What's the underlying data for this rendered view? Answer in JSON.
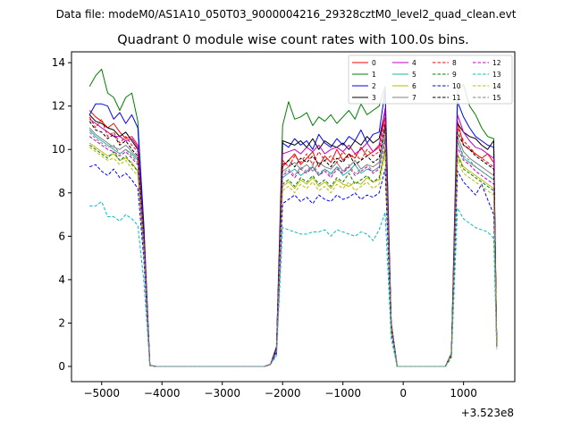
{
  "figure": {
    "suptitle": "Data file: modeM0/AS1A10_050T03_9000004216_29328cztM0_level2_quad_clean.evt"
  },
  "chart_data": {
    "type": "line",
    "title": "Quadrant 0 module wise count rates with 100.0s bins.",
    "xlabel": "",
    "ylabel": "",
    "x_offset_label": "+3.523e8",
    "xlim": [
      -5500,
      1850
    ],
    "ylim": [
      -0.7,
      14.5
    ],
    "xticks": [
      -5000,
      -4000,
      -3000,
      -2000,
      -1000,
      0,
      1000
    ],
    "yticks": [
      0,
      2,
      4,
      6,
      8,
      10,
      12,
      14
    ],
    "grid": false,
    "legend_location": "top-right",
    "x": [
      -5200,
      -5100,
      -5000,
      -4900,
      -4800,
      -4700,
      -4600,
      -4500,
      -4400,
      -4300,
      -4200,
      -4100,
      -4000,
      -3900,
      -3800,
      -3700,
      -3600,
      -3500,
      -3400,
      -3300,
      -3200,
      -3100,
      -3000,
      -2900,
      -2800,
      -2700,
      -2600,
      -2500,
      -2400,
      -2300,
      -2200,
      -2100,
      -2000,
      -1900,
      -1800,
      -1700,
      -1600,
      -1500,
      -1400,
      -1300,
      -1200,
      -1100,
      -1000,
      -900,
      -800,
      -700,
      -600,
      -500,
      -400,
      -300,
      -200,
      -100,
      0,
      100,
      200,
      300,
      400,
      500,
      600,
      700,
      800,
      900,
      1000,
      1100,
      1200,
      1300,
      1400,
      1500,
      1550
    ],
    "series": [
      {
        "name": "0",
        "color": "#ff0000",
        "dash": "solid",
        "values": [
          11.8,
          11.5,
          11.3,
          11.0,
          11.2,
          10.8,
          10.5,
          10.6,
          10.2,
          6.0,
          0.05,
          0,
          0,
          0,
          0,
          0,
          0,
          0,
          0,
          0,
          0,
          0,
          0,
          0,
          0,
          0,
          0,
          0,
          0,
          0,
          0.1,
          0.8,
          9.2,
          9.5,
          9.8,
          9.3,
          9.6,
          9.9,
          9.2,
          9.7,
          9.4,
          10.0,
          9.5,
          9.8,
          9.6,
          10.1,
          9.7,
          9.9,
          10.2,
          11.5,
          2.0,
          0,
          0,
          0,
          0,
          0,
          0,
          0,
          0,
          0,
          0.6,
          11.3,
          10.2,
          10.0,
          9.8,
          9.6,
          9.8,
          9.4,
          1.0
        ]
      },
      {
        "name": "1",
        "color": "#008000",
        "dash": "solid",
        "values": [
          12.9,
          13.4,
          13.7,
          12.6,
          12.4,
          11.8,
          12.4,
          12.6,
          11.3,
          6.5,
          0.05,
          0,
          0,
          0,
          0,
          0,
          0,
          0,
          0,
          0,
          0,
          0,
          0,
          0,
          0,
          0,
          0,
          0,
          0,
          0,
          0.1,
          0.9,
          11.1,
          12.2,
          11.4,
          11.5,
          11.7,
          11.1,
          11.5,
          11.3,
          11.6,
          11.2,
          11.5,
          11.8,
          11.4,
          12.1,
          11.6,
          11.8,
          12.0,
          12.9,
          2.0,
          0,
          0,
          0,
          0,
          0,
          0,
          0,
          0,
          0,
          0.6,
          12.7,
          13.0,
          12.0,
          11.6,
          11.0,
          10.6,
          10.5,
          1.1
        ]
      },
      {
        "name": "2",
        "color": "#0000ff",
        "dash": "solid",
        "values": [
          11.6,
          12.1,
          12.1,
          12.0,
          11.4,
          11.7,
          11.2,
          11.6,
          11.0,
          6.4,
          0.05,
          0,
          0,
          0,
          0,
          0,
          0,
          0,
          0,
          0,
          0,
          0,
          0,
          0,
          0,
          0,
          0,
          0,
          0,
          0,
          0.1,
          0.9,
          10.3,
          10.1,
          10.5,
          10.2,
          10.4,
          10.0,
          10.7,
          10.3,
          10.1,
          10.5,
          10.2,
          10.6,
          10.4,
          10.9,
          10.3,
          10.7,
          10.8,
          12.7,
          2.0,
          0,
          0,
          0,
          0,
          0,
          0,
          0,
          0,
          0,
          0.6,
          12.2,
          11.5,
          11.0,
          10.6,
          10.4,
          10.2,
          10.1,
          1.0
        ]
      },
      {
        "name": "3",
        "color": "#000000",
        "dash": "solid",
        "values": [
          11.6,
          11.3,
          11.2,
          11.0,
          10.9,
          10.6,
          10.8,
          10.4,
          10.0,
          6.0,
          0.05,
          0,
          0,
          0,
          0,
          0,
          0,
          0,
          0,
          0,
          0,
          0,
          0,
          0,
          0,
          0,
          0,
          0,
          0,
          0,
          0.1,
          0.8,
          10.4,
          10.3,
          10.2,
          10.4,
          10.1,
          10.5,
          10.0,
          10.4,
          10.2,
          10.1,
          10.3,
          10.0,
          10.4,
          10.2,
          10.6,
          10.3,
          10.5,
          11.8,
          2.0,
          0,
          0,
          0,
          0,
          0,
          0,
          0,
          0,
          0,
          0.6,
          11.2,
          10.8,
          10.6,
          10.5,
          10.2,
          10.0,
          10.4,
          1.0
        ]
      },
      {
        "name": "4",
        "color": "#c000c0",
        "dash": "solid",
        "values": [
          11.4,
          11.2,
          11.0,
          10.8,
          10.6,
          10.6,
          10.4,
          10.5,
          10.1,
          5.9,
          0.05,
          0,
          0,
          0,
          0,
          0,
          0,
          0,
          0,
          0,
          0,
          0,
          0,
          0,
          0,
          0,
          0,
          0,
          0,
          0,
          0.1,
          0.8,
          9.8,
          9.9,
          10.0,
          9.8,
          10.1,
          9.9,
          10.2,
          9.8,
          10.0,
          10.1,
          9.9,
          10.2,
          9.8,
          10.0,
          10.3,
          9.9,
          10.1,
          11.9,
          2.0,
          0,
          0,
          0,
          0,
          0,
          0,
          0,
          0,
          0,
          0.6,
          11.6,
          10.8,
          10.4,
          10.1,
          10.0,
          9.8,
          9.6,
          1.0
        ]
      },
      {
        "name": "5",
        "color": "#20b2aa",
        "dash": "solid",
        "values": [
          10.9,
          10.6,
          10.4,
          10.2,
          10.0,
          9.8,
          10.0,
          9.8,
          9.5,
          5.6,
          0.05,
          0,
          0,
          0,
          0,
          0,
          0,
          0,
          0,
          0,
          0,
          0,
          0,
          0,
          0,
          0,
          0,
          0,
          0,
          0,
          0.1,
          0.7,
          8.7,
          8.9,
          9.1,
          8.8,
          9.0,
          9.2,
          8.8,
          9.1,
          8.9,
          9.2,
          8.8,
          9.0,
          9.3,
          8.9,
          9.1,
          9.0,
          9.2,
          10.6,
          1.8,
          0,
          0,
          0,
          0,
          0,
          0,
          0,
          0,
          0,
          0.5,
          10.4,
          9.6,
          9.4,
          9.2,
          9.0,
          8.8,
          8.6,
          0.9
        ]
      },
      {
        "name": "6",
        "color": "#bbbb00",
        "dash": "solid",
        "values": [
          10.3,
          10.1,
          9.9,
          9.7,
          9.8,
          9.5,
          9.6,
          9.4,
          9.0,
          5.4,
          0.05,
          0,
          0,
          0,
          0,
          0,
          0,
          0,
          0,
          0,
          0,
          0,
          0,
          0,
          0,
          0,
          0,
          0,
          0,
          0,
          0.1,
          0.7,
          8.3,
          8.5,
          8.2,
          8.6,
          8.4,
          8.7,
          8.3,
          8.5,
          8.2,
          8.6,
          8.4,
          8.3,
          8.5,
          8.4,
          8.7,
          8.5,
          8.6,
          10.1,
          1.8,
          0,
          0,
          0,
          0,
          0,
          0,
          0,
          0,
          0,
          0.5,
          9.8,
          9.2,
          9.0,
          8.8,
          8.6,
          8.4,
          8.2,
          0.9
        ]
      },
      {
        "name": "7",
        "color": "#808080",
        "dash": "solid",
        "values": [
          11.0,
          10.7,
          10.5,
          10.3,
          10.1,
          10.0,
          10.2,
          9.9,
          9.6,
          5.7,
          0.05,
          0,
          0,
          0,
          0,
          0,
          0,
          0,
          0,
          0,
          0,
          0,
          0,
          0,
          0,
          0,
          0,
          0,
          0,
          0,
          0.1,
          0.7,
          9.0,
          9.2,
          9.4,
          9.1,
          9.3,
          9.0,
          9.4,
          9.2,
          9.1,
          9.4,
          9.0,
          9.2,
          9.5,
          9.1,
          9.3,
          9.2,
          9.4,
          11.0,
          1.9,
          0,
          0,
          0,
          0,
          0,
          0,
          0,
          0,
          0,
          0.6,
          10.6,
          9.9,
          9.6,
          9.4,
          9.2,
          9.0,
          8.8,
          0.9
        ]
      },
      {
        "name": "8",
        "color": "#ff0000",
        "dash": "dashed",
        "values": [
          11.5,
          11.0,
          11.4,
          10.6,
          10.8,
          10.3,
          10.6,
          10.2,
          9.9,
          5.9,
          0.05,
          0,
          0,
          0,
          0,
          0,
          0,
          0,
          0,
          0,
          0,
          0,
          0,
          0,
          0,
          0,
          0,
          0,
          0,
          0,
          0.1,
          0.8,
          9.5,
          9.2,
          9.7,
          9.4,
          9.8,
          9.3,
          9.9,
          9.5,
          9.7,
          9.4,
          9.9,
          9.6,
          9.8,
          9.5,
          10.0,
          9.7,
          9.9,
          11.3,
          1.9,
          0,
          0,
          0,
          0,
          0,
          0,
          0,
          0,
          0,
          0.6,
          11.0,
          10.4,
          10.1,
          9.8,
          9.6,
          9.4,
          9.2,
          1.0
        ]
      },
      {
        "name": "9",
        "color": "#008000",
        "dash": "dashed",
        "values": [
          10.2,
          10.0,
          9.8,
          9.6,
          9.9,
          9.5,
          9.7,
          9.3,
          9.0,
          5.3,
          0.05,
          0,
          0,
          0,
          0,
          0,
          0,
          0,
          0,
          0,
          0,
          0,
          0,
          0,
          0,
          0,
          0,
          0,
          0,
          0,
          0.1,
          0.7,
          8.4,
          8.6,
          8.3,
          8.7,
          8.5,
          8.8,
          8.4,
          8.6,
          8.3,
          8.7,
          8.5,
          8.9,
          8.4,
          8.6,
          8.8,
          8.5,
          8.7,
          10.0,
          1.8,
          0,
          0,
          0,
          0,
          0,
          0,
          0,
          0,
          0,
          0.5,
          9.7,
          9.1,
          8.9,
          8.7,
          8.5,
          8.3,
          8.1,
          0.9
        ]
      },
      {
        "name": "10",
        "color": "#0000ff",
        "dash": "dashed",
        "values": [
          9.2,
          9.3,
          9.0,
          8.8,
          9.1,
          8.7,
          8.9,
          8.6,
          8.2,
          4.9,
          0.05,
          0,
          0,
          0,
          0,
          0,
          0,
          0,
          0,
          0,
          0,
          0,
          0,
          0,
          0,
          0,
          0,
          0,
          0,
          0,
          0.1,
          0.6,
          7.5,
          7.7,
          7.9,
          7.6,
          7.8,
          7.5,
          7.9,
          7.7,
          7.6,
          7.9,
          7.7,
          7.8,
          8.0,
          7.7,
          7.9,
          7.8,
          8.0,
          9.1,
          1.6,
          0,
          0,
          0,
          0,
          0,
          0,
          0,
          0,
          0,
          0.5,
          9.0,
          8.5,
          8.2,
          7.9,
          8.4,
          7.7,
          7.0,
          0.8
        ]
      },
      {
        "name": "11",
        "color": "#000000",
        "dash": "dashed",
        "values": [
          11.3,
          10.9,
          10.8,
          10.5,
          10.7,
          10.2,
          10.4,
          10.0,
          9.7,
          5.8,
          0.05,
          0,
          0,
          0,
          0,
          0,
          0,
          0,
          0,
          0,
          0,
          0,
          0,
          0,
          0,
          0,
          0,
          0,
          0,
          0,
          0.1,
          0.8,
          9.3,
          9.5,
          9.2,
          9.6,
          9.4,
          9.7,
          9.3,
          9.5,
          9.2,
          9.6,
          9.4,
          9.8,
          9.3,
          9.5,
          9.7,
          9.4,
          9.6,
          11.1,
          1.9,
          0,
          0,
          0,
          0,
          0,
          0,
          0,
          0,
          0,
          0.6,
          10.8,
          10.2,
          10.0,
          9.7,
          9.5,
          9.3,
          9.1,
          1.0
        ]
      },
      {
        "name": "12",
        "color": "#c000c0",
        "dash": "dashed",
        "values": [
          10.6,
          10.4,
          10.2,
          10.0,
          9.9,
          9.7,
          9.9,
          9.6,
          9.3,
          5.5,
          0.05,
          0,
          0,
          0,
          0,
          0,
          0,
          0,
          0,
          0,
          0,
          0,
          0,
          0,
          0,
          0,
          0,
          0,
          0,
          0,
          0.1,
          0.7,
          8.8,
          9.0,
          8.7,
          9.1,
          8.9,
          9.2,
          8.8,
          9.0,
          8.7,
          9.1,
          8.9,
          9.2,
          8.8,
          9.0,
          9.2,
          8.9,
          9.1,
          10.4,
          1.8,
          0,
          0,
          0,
          0,
          0,
          0,
          0,
          0,
          0,
          0.5,
          10.1,
          9.5,
          9.3,
          9.0,
          8.8,
          8.6,
          8.4,
          0.9
        ]
      },
      {
        "name": "13",
        "color": "#00bfbf",
        "dash": "dashed",
        "values": [
          7.4,
          7.4,
          7.6,
          6.9,
          6.9,
          6.7,
          7.0,
          6.8,
          6.5,
          3.9,
          0.05,
          0,
          0,
          0,
          0,
          0,
          0,
          0,
          0,
          0,
          0,
          0,
          0,
          0,
          0,
          0,
          0,
          0,
          0,
          0,
          0.1,
          0.5,
          6.4,
          6.3,
          6.2,
          6.1,
          6.1,
          6.2,
          6.2,
          6.3,
          6.0,
          6.3,
          6.2,
          6.1,
          6.0,
          6.2,
          6.1,
          5.8,
          6.3,
          7.1,
          1.3,
          0,
          0,
          0,
          0,
          0,
          0,
          0,
          0,
          0,
          0.4,
          7.3,
          6.8,
          6.6,
          6.4,
          6.3,
          6.2,
          5.9,
          0.8
        ]
      },
      {
        "name": "14",
        "color": "#bbbb00",
        "dash": "dashed",
        "values": [
          10.1,
          9.9,
          9.7,
          9.5,
          9.6,
          9.3,
          9.5,
          9.1,
          8.8,
          5.2,
          0.05,
          0,
          0,
          0,
          0,
          0,
          0,
          0,
          0,
          0,
          0,
          0,
          0,
          0,
          0,
          0,
          0,
          0,
          0,
          0,
          0.1,
          0.7,
          8.1,
          8.3,
          8.0,
          8.4,
          8.2,
          8.5,
          8.1,
          8.3,
          8.0,
          8.4,
          8.2,
          8.5,
          8.1,
          8.3,
          8.5,
          8.2,
          8.4,
          9.8,
          1.7,
          0,
          0,
          0,
          0,
          0,
          0,
          0,
          0,
          0,
          0.5,
          9.5,
          8.9,
          8.7,
          8.5,
          8.3,
          8.1,
          7.9,
          0.9
        ]
      },
      {
        "name": "15",
        "color": "#808080",
        "dash": "dashed",
        "values": [
          10.8,
          10.5,
          10.3,
          10.1,
          10.2,
          9.8,
          10.0,
          9.7,
          9.4,
          5.6,
          0.05,
          0,
          0,
          0,
          0,
          0,
          0,
          0,
          0,
          0,
          0,
          0,
          0,
          0,
          0,
          0,
          0,
          0,
          0,
          0,
          0.1,
          0.7,
          8.9,
          9.1,
          8.8,
          9.2,
          9.0,
          9.3,
          8.9,
          9.1,
          8.8,
          9.2,
          9.0,
          9.3,
          8.9,
          9.1,
          9.3,
          9.0,
          9.2,
          10.7,
          1.9,
          0,
          0,
          0,
          0,
          0,
          0,
          0,
          0,
          0,
          0.6,
          10.4,
          9.7,
          9.5,
          9.2,
          9.0,
          8.8,
          8.6,
          0.9
        ]
      }
    ]
  }
}
